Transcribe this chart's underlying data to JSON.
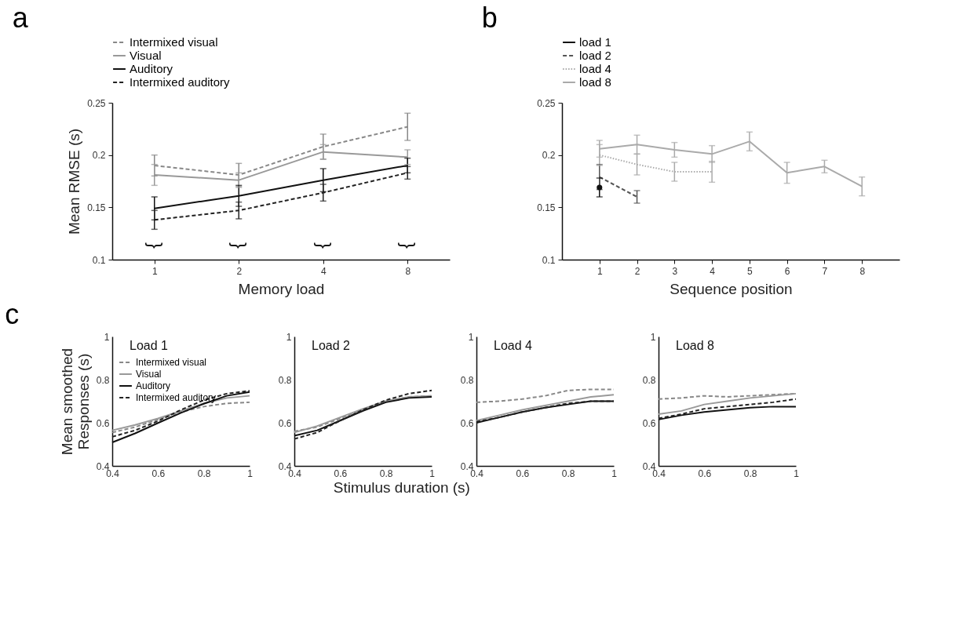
{
  "chart_data": [
    {
      "type": "line",
      "title": "a",
      "xlabel": "Memory load",
      "ylabel": "Mean RMSE (s)",
      "categories": [
        "1",
        "2",
        "4",
        "8"
      ],
      "ylim": [
        0.1,
        0.25
      ],
      "yticks": [
        0.1,
        0.15,
        0.2,
        0.25
      ],
      "legend": "top",
      "marker": "none",
      "series": [
        {
          "name": "Intermixed visual",
          "color": "#888888",
          "line_style": "dashed",
          "values": [
            0.19,
            0.181,
            0.208,
            0.227
          ],
          "errors": [
            0.01,
            0.011,
            0.012,
            0.013
          ]
        },
        {
          "name": "Visual",
          "color": "#999999",
          "line_style": "solid",
          "values": [
            0.181,
            0.176,
            0.203,
            0.198
          ],
          "errors": [
            0.01,
            0.007,
            0.007,
            0.007
          ]
        },
        {
          "name": "Auditory",
          "color": "#111111",
          "line_style": "solid",
          "values": [
            0.149,
            0.161,
            0.176,
            0.19
          ],
          "errors": [
            0.011,
            0.01,
            0.011,
            0.007
          ]
        },
        {
          "name": "Intermixed auditory",
          "color": "#222222",
          "line_style": "dashed",
          "values": [
            0.138,
            0.147,
            0.164,
            0.183
          ],
          "errors": [
            0.009,
            0.008,
            0.008,
            0.006
          ]
        }
      ],
      "annotations": [
        "}",
        "}",
        "}",
        "}"
      ]
    },
    {
      "type": "line",
      "title": "b",
      "xlabel": "Sequence position",
      "xlim": [
        0,
        9
      ],
      "xticks": [
        1,
        2,
        3,
        4,
        5,
        6,
        7,
        8
      ],
      "ylim": [
        0.1,
        0.25
      ],
      "yticks": [
        0.1,
        0.15,
        0.2,
        0.25
      ],
      "legend": "top",
      "marker": "none",
      "series": [
        {
          "name": "load 1",
          "type": "scatter",
          "marker": "circle",
          "color": "#111111",
          "x": [
            1
          ],
          "values": [
            0.169
          ],
          "errors": [
            0.009
          ]
        },
        {
          "name": "load 2",
          "color": "#555555",
          "line_style": "dashed",
          "x": [
            1,
            2
          ],
          "values": [
            0.179,
            0.16
          ],
          "errors": [
            0.012,
            0.006
          ]
        },
        {
          "name": "load 4",
          "color": "#aaaaaa",
          "line_style": "dotted",
          "x": [
            1,
            2,
            3,
            4
          ],
          "values": [
            0.2,
            0.191,
            0.184,
            0.184
          ],
          "errors": [
            0.01,
            0.01,
            0.009,
            0.01
          ]
        },
        {
          "name": "load 8",
          "color": "#aaaaaa",
          "line_style": "solid",
          "x": [
            1,
            2,
            3,
            4,
            5,
            6,
            7,
            8
          ],
          "values": [
            0.206,
            0.21,
            0.205,
            0.201,
            0.213,
            0.183,
            0.189,
            0.17
          ],
          "errors": [
            0.008,
            0.009,
            0.007,
            0.008,
            0.009,
            0.01,
            0.006,
            0.009
          ]
        }
      ]
    },
    {
      "type": "line",
      "title": "c",
      "subtitle": "Load 1",
      "xlabel": "Stimulus duration (s)",
      "ylabel": "Mean smoothed Responses (s)",
      "x": [
        0.4,
        0.5,
        0.6,
        0.7,
        0.8,
        0.9,
        1.0
      ],
      "xlim": [
        0.4,
        1
      ],
      "xticks": [
        0.4,
        0.6,
        0.8,
        1
      ],
      "ylim": [
        0.4,
        1
      ],
      "yticks": [
        0.4,
        0.6,
        0.8,
        1
      ],
      "legend": "top left",
      "marker": "none",
      "series": [
        {
          "name": "Intermixed visual",
          "color": "#888888",
          "line_style": "dashed",
          "values": [
            0.555,
            0.58,
            0.615,
            0.65,
            0.675,
            0.69,
            0.695
          ]
        },
        {
          "name": "Visual",
          "color": "#999999",
          "line_style": "solid",
          "values": [
            0.565,
            0.59,
            0.62,
            0.655,
            0.69,
            0.715,
            0.725
          ]
        },
        {
          "name": "Auditory",
          "color": "#111111",
          "line_style": "solid",
          "values": [
            0.509,
            0.551,
            0.599,
            0.646,
            0.688,
            0.725,
            0.743
          ]
        },
        {
          "name": "Intermixed auditory",
          "color": "#222222",
          "line_style": "dashed",
          "values": [
            0.535,
            0.565,
            0.608,
            0.66,
            0.705,
            0.735,
            0.748
          ]
        }
      ]
    },
    {
      "type": "line",
      "subtitle": "Load 2",
      "x": [
        0.4,
        0.5,
        0.6,
        0.7,
        0.8,
        0.9,
        1.0
      ],
      "xlim": [
        0.4,
        1
      ],
      "xticks": [
        0.4,
        0.6,
        0.8,
        1
      ],
      "ylim": [
        0.4,
        1
      ],
      "yticks": [
        0.4,
        0.6,
        0.8,
        1
      ],
      "marker": "none",
      "series": [
        {
          "color": "#888888",
          "line_style": "dashed",
          "values": [
            0.56,
            0.58,
            0.62,
            0.66,
            0.7,
            0.72,
            0.725
          ]
        },
        {
          "color": "#999999",
          "line_style": "solid",
          "values": [
            0.555,
            0.585,
            0.625,
            0.665,
            0.7,
            0.72,
            0.725
          ]
        },
        {
          "color": "#111111",
          "line_style": "solid",
          "values": [
            0.54,
            0.565,
            0.61,
            0.655,
            0.695,
            0.715,
            0.72
          ]
        },
        {
          "color": "#222222",
          "line_style": "dashed",
          "values": [
            0.525,
            0.555,
            0.61,
            0.66,
            0.705,
            0.735,
            0.75
          ]
        }
      ]
    },
    {
      "type": "line",
      "subtitle": "Load 4",
      "x": [
        0.4,
        0.5,
        0.6,
        0.7,
        0.8,
        0.9,
        1.0
      ],
      "xlim": [
        0.4,
        1
      ],
      "xticks": [
        0.4,
        0.6,
        0.8,
        1
      ],
      "ylim": [
        0.4,
        1
      ],
      "yticks": [
        0.4,
        0.6,
        0.8,
        1
      ],
      "marker": "none",
      "series": [
        {
          "color": "#888888",
          "line_style": "dashed",
          "values": [
            0.695,
            0.7,
            0.71,
            0.725,
            0.75,
            0.755,
            0.755
          ]
        },
        {
          "color": "#999999",
          "line_style": "solid",
          "values": [
            0.61,
            0.635,
            0.66,
            0.68,
            0.7,
            0.72,
            0.73
          ]
        },
        {
          "color": "#111111",
          "line_style": "solid",
          "values": [
            0.6,
            0.625,
            0.65,
            0.67,
            0.685,
            0.7,
            0.7
          ]
        },
        {
          "color": "#222222",
          "line_style": "dashed",
          "values": [
            0.605,
            0.625,
            0.65,
            0.67,
            0.69,
            0.7,
            0.7
          ]
        }
      ]
    },
    {
      "type": "line",
      "subtitle": "Load 8",
      "x": [
        0.4,
        0.5,
        0.6,
        0.7,
        0.8,
        0.9,
        1.0
      ],
      "xlim": [
        0.4,
        1
      ],
      "xticks": [
        0.4,
        0.6,
        0.8,
        1
      ],
      "ylim": [
        0.4,
        1
      ],
      "yticks": [
        0.4,
        0.6,
        0.8,
        1
      ],
      "marker": "none",
      "series": [
        {
          "color": "#888888",
          "line_style": "dashed",
          "values": [
            0.71,
            0.715,
            0.725,
            0.72,
            0.725,
            0.73,
            0.735
          ]
        },
        {
          "color": "#999999",
          "line_style": "solid",
          "values": [
            0.64,
            0.655,
            0.685,
            0.7,
            0.715,
            0.725,
            0.735
          ]
        },
        {
          "color": "#111111",
          "line_style": "solid",
          "values": [
            0.615,
            0.635,
            0.65,
            0.66,
            0.67,
            0.675,
            0.675
          ]
        },
        {
          "color": "#222222",
          "line_style": "dashed",
          "values": [
            0.62,
            0.64,
            0.665,
            0.675,
            0.685,
            0.695,
            0.71
          ]
        }
      ]
    }
  ]
}
